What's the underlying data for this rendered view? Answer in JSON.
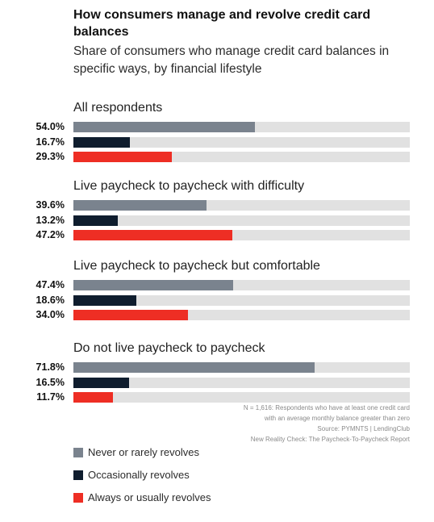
{
  "colors": {
    "never": "#7a838e",
    "occasionally": "#0f1d2e",
    "always": "#ee2e24",
    "track": "#e1e1e1"
  },
  "chart_data": {
    "type": "bar",
    "title": "How consumers manage and revolve credit card balances",
    "subtitle": "Share of consumers who manage credit card balances in specific ways, by financial lifestyle",
    "xlim": [
      0,
      100
    ],
    "categories": [
      "All respondents",
      "Live paycheck to paycheck with difficulty",
      "Live paycheck to paycheck but comfortable",
      "Do not live paycheck to paycheck"
    ],
    "series": [
      {
        "name": "Never or rarely revolves",
        "values": [
          54.0,
          39.6,
          47.4,
          71.8
        ],
        "labels": [
          "54.0%",
          "39.6%",
          "47.4%",
          "71.8%"
        ]
      },
      {
        "name": "Occasionally revolves",
        "values": [
          16.7,
          13.2,
          18.6,
          16.5
        ],
        "labels": [
          "16.7%",
          "13.2%",
          "18.6%",
          "16.5%"
        ]
      },
      {
        "name": "Always or usually revolves",
        "values": [
          29.3,
          47.2,
          34.0,
          11.7
        ],
        "labels": [
          "29.3%",
          "47.2%",
          "34.0%",
          "11.7%"
        ]
      }
    ],
    "legend_position": "bottom-left",
    "grid": false
  },
  "notes": [
    "N = 1,616: Respondents who have at least one credit card",
    "with an average monthly balance greater than zero",
    "Source: PYMNTS  |  LendingClub",
    "New Reality Check: The Paycheck-To-Paycheck Report"
  ]
}
